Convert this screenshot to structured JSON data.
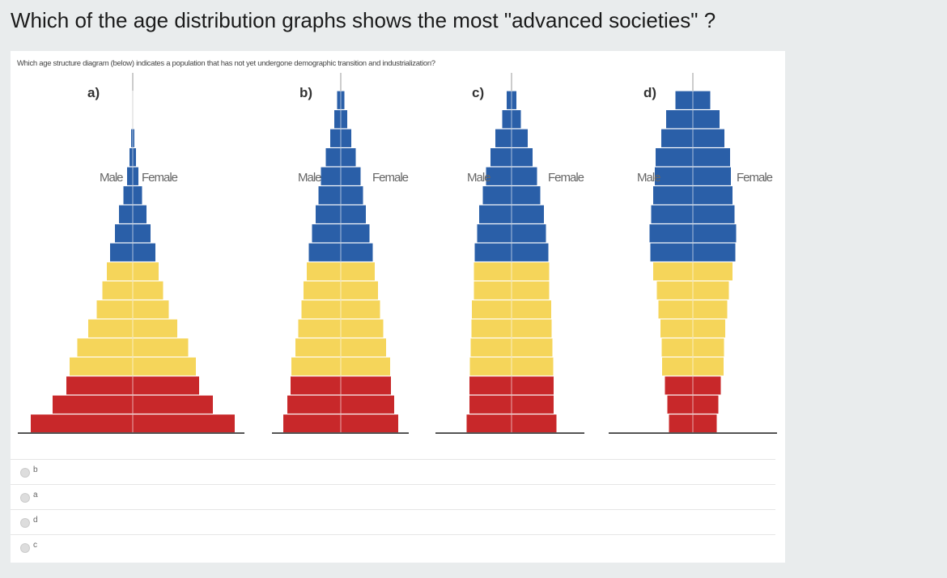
{
  "question": "Which of the age distribution graphs shows the most \"advanced societies\" ?",
  "figure": {
    "subtitle": "Which age structure diagram (below) indicates a population that has not yet undergone demographic transition and industrialization?",
    "colors": {
      "pre_reproductive": "#c8282a",
      "reproductive": "#f5d55a",
      "post_reproductive": "#2a5fa8"
    }
  },
  "chart_data": [
    {
      "type": "bar",
      "label": "a)",
      "male_label": "Male",
      "female_label": "Female",
      "order": "bottom-to-top",
      "values": [
        252,
        198,
        164,
        156,
        137,
        110,
        89,
        75,
        64,
        56,
        44,
        34,
        23,
        14,
        8,
        4,
        0,
        0
      ]
    },
    {
      "type": "bar",
      "label": "b)",
      "male_label": "Male",
      "female_label": "Female",
      "order": "bottom-to-top",
      "values": [
        142,
        132,
        124,
        122,
        112,
        105,
        97,
        92,
        84,
        79,
        71,
        62,
        55,
        49,
        37,
        26,
        16,
        9
      ]
    },
    {
      "type": "bar",
      "label": "c)",
      "male_label": "Male",
      "female_label": "Female",
      "order": "bottom-to-top",
      "values": [
        111,
        104,
        104,
        103,
        101,
        99,
        98,
        93,
        93,
        91,
        85,
        80,
        71,
        63,
        52,
        40,
        23,
        12
      ]
    },
    {
      "type": "bar",
      "label": "d)",
      "male_label": "Male",
      "female_label": "Female",
      "order": "bottom-to-top",
      "values": [
        59,
        63,
        69,
        76,
        77,
        80,
        85,
        89,
        98,
        105,
        107,
        103,
        98,
        94,
        92,
        78,
        66,
        43
      ]
    }
  ],
  "options": [
    {
      "label": "b"
    },
    {
      "label": "a"
    },
    {
      "label": "d"
    },
    {
      "label": "c"
    }
  ]
}
